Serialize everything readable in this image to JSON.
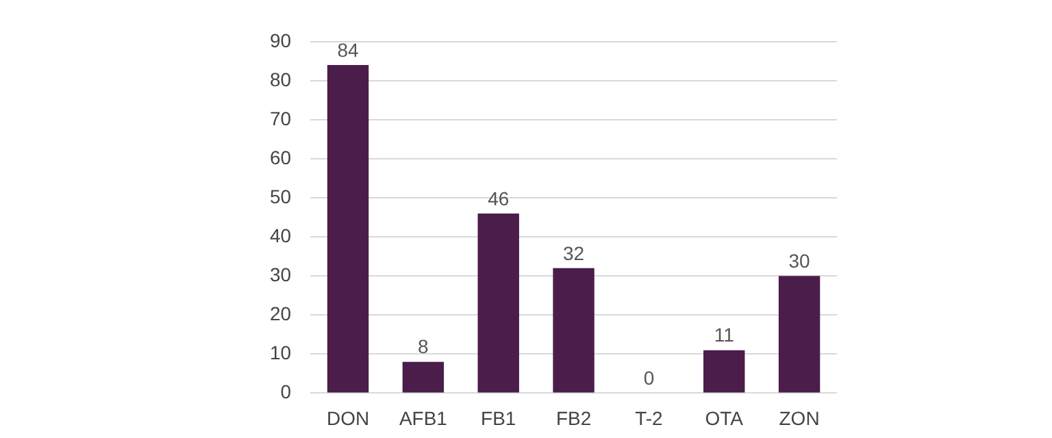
{
  "chart_data": {
    "type": "bar",
    "categories": [
      "DON",
      "AFB1",
      "FB1",
      "FB2",
      "T-2",
      "OTA",
      "ZON"
    ],
    "values": [
      84,
      8,
      46,
      32,
      0,
      11,
      30
    ],
    "color": "#4a1d4a",
    "ylim": [
      0,
      90
    ],
    "yticks": [
      0,
      10,
      20,
      30,
      40,
      50,
      60,
      70,
      80,
      90
    ],
    "grid": "y",
    "data_labels": true
  }
}
